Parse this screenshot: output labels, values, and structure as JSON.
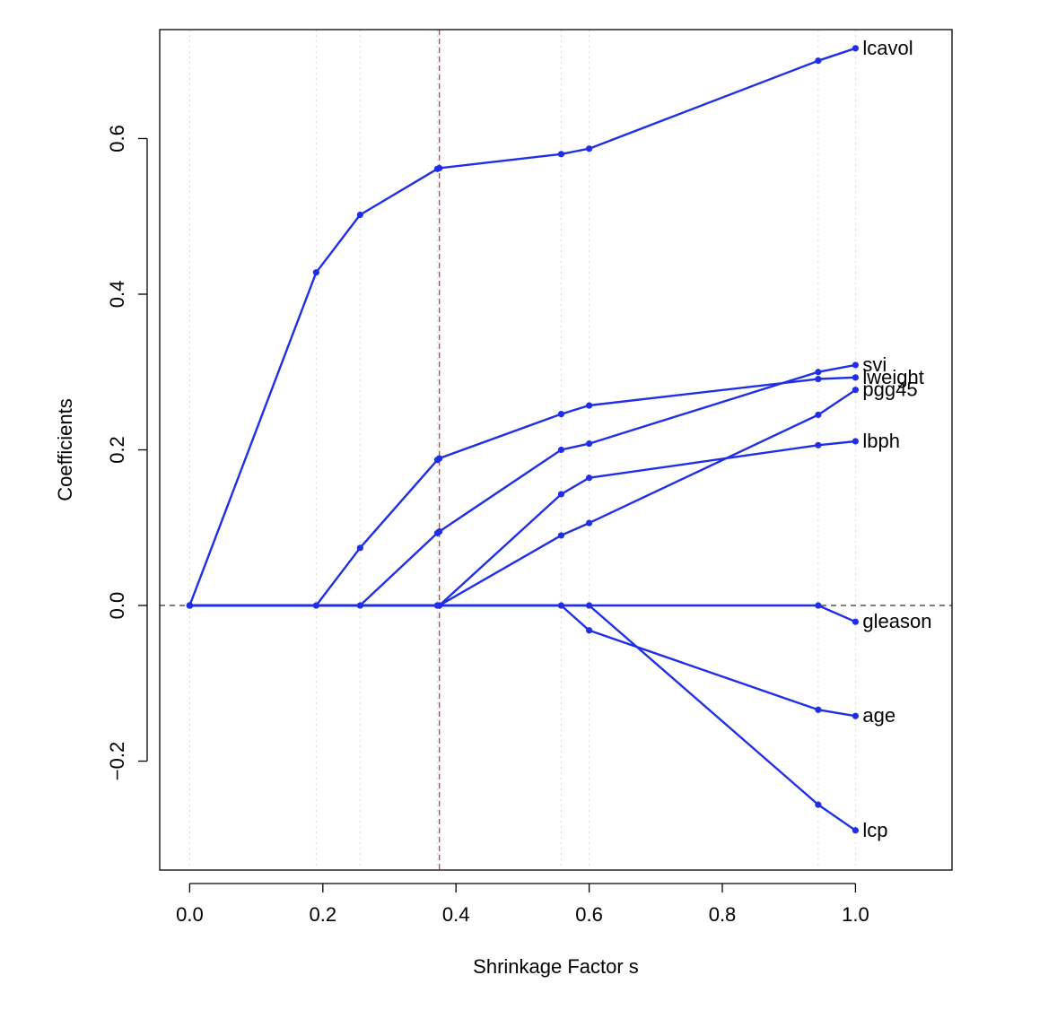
{
  "chart_data": {
    "type": "line",
    "title": "",
    "xlabel": "Shrinkage Factor s",
    "ylabel": "Coefficients",
    "xlim": [
      -0.045,
      1.145
    ],
    "ylim": [
      -0.34,
      0.74
    ],
    "xticks": [
      0.0,
      0.2,
      0.4,
      0.6,
      0.8,
      1.0
    ],
    "xtick_labels": [
      "0.0",
      "0.2",
      "0.4",
      "0.6",
      "0.8",
      "1.0"
    ],
    "yticks": [
      -0.2,
      0.0,
      0.2,
      0.4,
      0.6
    ],
    "ytick_labels": [
      "−0.2",
      "0.0",
      "0.2",
      "0.4",
      "0.6"
    ],
    "grid": "vertical dotted at each step",
    "step_positions": [
      0.0,
      0.19,
      0.256,
      0.372,
      0.375,
      0.558,
      0.6,
      0.944,
      1.0
    ],
    "selected_s": 0.375,
    "zero_line": 0.0,
    "line_color": "#1f2fe6",
    "zero_line_color": "#555555",
    "selected_line_color": "#e8323c",
    "grid_color": "#d8d8d8",
    "series": [
      {
        "name": "lcavol",
        "x": [
          0.0,
          0.19,
          0.256,
          0.372,
          0.375,
          0.558,
          0.6,
          0.944,
          1.0
        ],
        "y": [
          0.0,
          0.428,
          0.502,
          0.561,
          0.562,
          0.58,
          0.587,
          0.7,
          0.716
        ]
      },
      {
        "name": "svi",
        "x": [
          0.0,
          0.256,
          0.372,
          0.375,
          0.558,
          0.6,
          0.944,
          1.0
        ],
        "y": [
          0.0,
          0.0,
          0.093,
          0.095,
          0.2,
          0.208,
          0.3,
          0.309
        ]
      },
      {
        "name": "lweight",
        "x": [
          0.0,
          0.19,
          0.256,
          0.372,
          0.375,
          0.558,
          0.6,
          0.944,
          1.0
        ],
        "y": [
          0.0,
          0.0,
          0.074,
          0.187,
          0.189,
          0.246,
          0.257,
          0.291,
          0.293
        ]
      },
      {
        "name": "pgg45",
        "x": [
          0.0,
          0.372,
          0.375,
          0.558,
          0.6,
          0.944,
          1.0
        ],
        "y": [
          0.0,
          0.0,
          0.0,
          0.09,
          0.106,
          0.245,
          0.277
        ]
      },
      {
        "name": "lbph",
        "x": [
          0.0,
          0.372,
          0.375,
          0.558,
          0.6,
          0.944,
          1.0
        ],
        "y": [
          0.0,
          0.0,
          0.0,
          0.143,
          0.164,
          0.206,
          0.211
        ]
      },
      {
        "name": "gleason",
        "x": [
          0.0,
          0.944,
          1.0
        ],
        "y": [
          0.0,
          0.0,
          -0.021
        ]
      },
      {
        "name": "age",
        "x": [
          0.0,
          0.558,
          0.6,
          0.944,
          1.0
        ],
        "y": [
          0.0,
          0.0,
          -0.032,
          -0.134,
          -0.142
        ]
      },
      {
        "name": "lcp",
        "x": [
          0.0,
          0.6,
          0.944,
          1.0
        ],
        "y": [
          0.0,
          0.0,
          -0.256,
          -0.289
        ]
      }
    ]
  }
}
